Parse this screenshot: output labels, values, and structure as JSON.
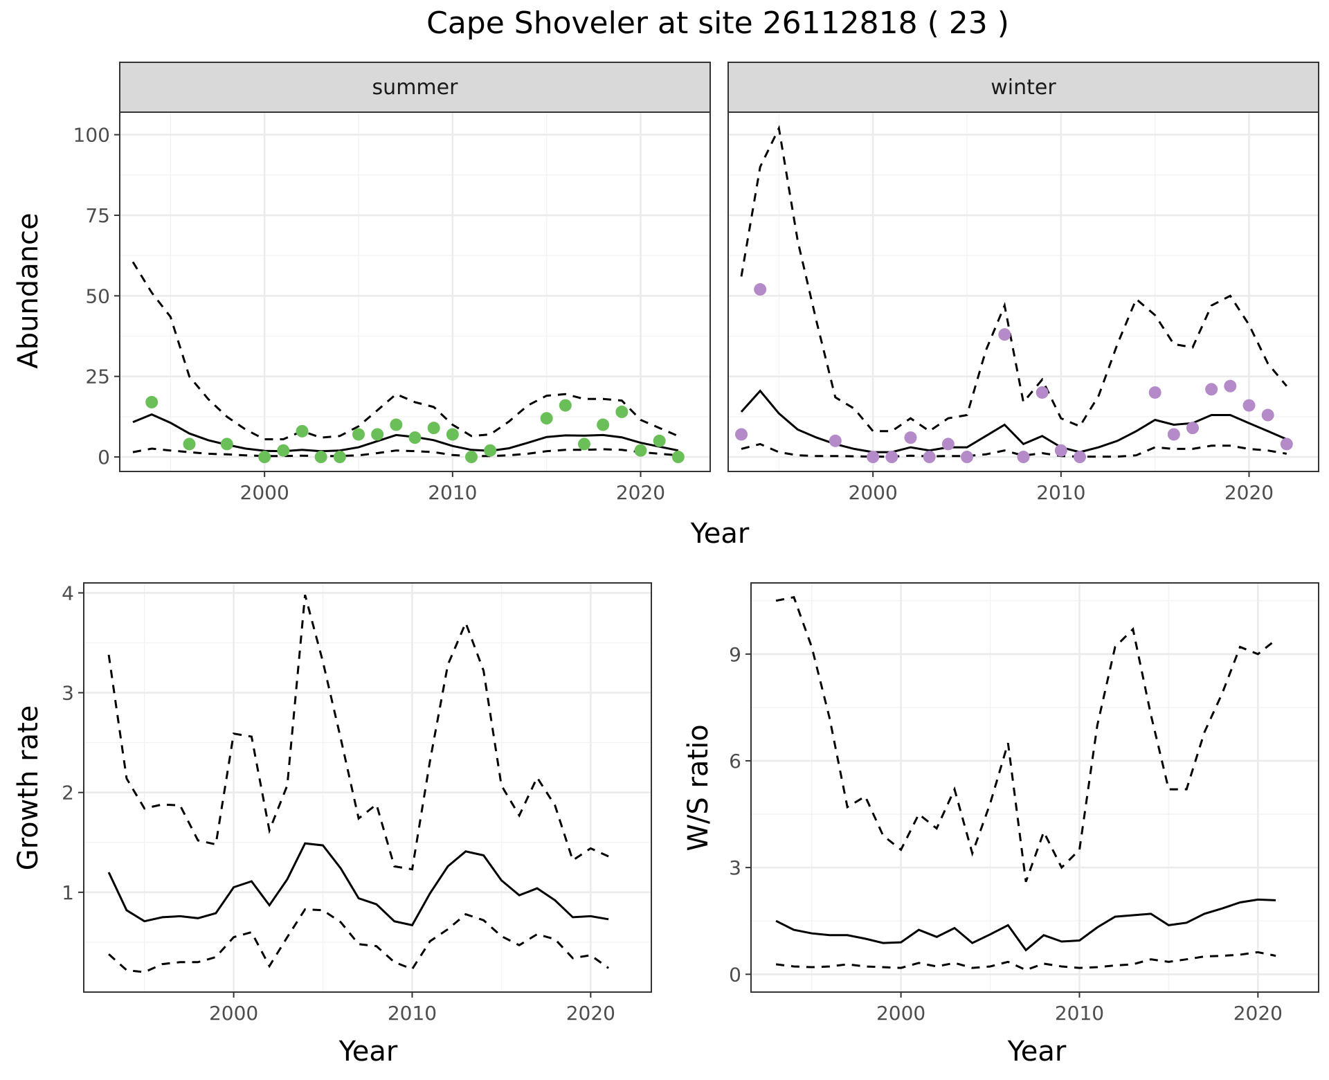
{
  "title": "Cape Shoveler at site 26112818 ( 23 )",
  "chart_data": [
    {
      "type": "line",
      "panel": "summer",
      "strip_label": "summer",
      "xlabel": "Year",
      "ylabel": "Abundance",
      "xlim": [
        1992.3,
        2023.7
      ],
      "ylim": [
        -4.5,
        107
      ],
      "xticks": [
        2000,
        2010,
        2020
      ],
      "yticks": [
        0,
        25,
        50,
        75,
        100
      ],
      "point_color": "#6abf59",
      "mean": {
        "x": [
          1993,
          1994,
          1995,
          1996,
          1997,
          1998,
          1999,
          2000,
          2001,
          2002,
          2003,
          2004,
          2005,
          2006,
          2007,
          2008,
          2009,
          2010,
          2011,
          2012,
          2013,
          2014,
          2015,
          2016,
          2017,
          2018,
          2019,
          2020,
          2021,
          2022
        ],
        "y": [
          10.8,
          13.2,
          10.6,
          7.3,
          5.2,
          3.8,
          2.6,
          1.9,
          1.8,
          2.2,
          1.8,
          2.0,
          3.0,
          4.9,
          6.8,
          6.2,
          5.2,
          3.4,
          2.2,
          1.9,
          2.7,
          4.4,
          6.2,
          6.7,
          6.6,
          6.8,
          6.1,
          4.4,
          3.2,
          2.0
        ]
      },
      "upper": {
        "x": [
          1993,
          1994,
          1995,
          1996,
          1997,
          1998,
          1999,
          2000,
          2001,
          2002,
          2003,
          2004,
          2005,
          2006,
          2007,
          2008,
          2009,
          2010,
          2011,
          2012,
          2013,
          2014,
          2015,
          2016,
          2017,
          2018,
          2019,
          2020,
          2021,
          2022
        ],
        "y": [
          60.5,
          51.0,
          43.5,
          25.0,
          18.0,
          12.5,
          8.5,
          5.5,
          5.5,
          8.0,
          6.0,
          6.5,
          9.5,
          14.5,
          19.5,
          17.0,
          15.5,
          10.0,
          6.5,
          7.0,
          11.0,
          16.0,
          19.0,
          19.5,
          18.0,
          18.0,
          17.5,
          11.5,
          9.0,
          6.5
        ]
      },
      "lower": {
        "x": [
          1993,
          1994,
          1995,
          1996,
          1997,
          1998,
          1999,
          2000,
          2001,
          2002,
          2003,
          2004,
          2005,
          2006,
          2007,
          2008,
          2009,
          2010,
          2011,
          2012,
          2013,
          2014,
          2015,
          2016,
          2017,
          2018,
          2019,
          2020,
          2021,
          2022
        ],
        "y": [
          1.5,
          2.6,
          2.0,
          1.5,
          1.0,
          0.8,
          0.5,
          0.3,
          0.3,
          0.4,
          0.3,
          0.3,
          0.5,
          1.2,
          2.0,
          1.8,
          1.5,
          0.6,
          0.3,
          0.3,
          0.5,
          1.0,
          1.8,
          2.2,
          2.2,
          2.4,
          2.2,
          1.5,
          1.0,
          0.5
        ]
      },
      "observed": {
        "x": [
          1994,
          1996,
          1998,
          2000,
          2001,
          2002,
          2003,
          2004,
          2005,
          2006,
          2007,
          2008,
          2009,
          2010,
          2011,
          2012,
          2015,
          2016,
          2017,
          2018,
          2019,
          2020,
          2021,
          2022
        ],
        "y": [
          17,
          4,
          4,
          0,
          2,
          8,
          0,
          0,
          7,
          7,
          10,
          6,
          9,
          7,
          0,
          2,
          12,
          16,
          4,
          10,
          14,
          2,
          5,
          0
        ]
      }
    },
    {
      "type": "line",
      "panel": "winter",
      "strip_label": "winter",
      "xlabel": "Year",
      "ylabel": "Abundance",
      "xlim": [
        1992.3,
        2023.7
      ],
      "ylim": [
        -4.5,
        107
      ],
      "xticks": [
        2000,
        2010,
        2020
      ],
      "yticks": [
        0,
        25,
        50,
        75,
        100
      ],
      "point_color": "#b48ac8",
      "mean": {
        "x": [
          1993,
          1994,
          1995,
          1996,
          1997,
          1998,
          1999,
          2000,
          2001,
          2002,
          2003,
          2004,
          2005,
          2006,
          2007,
          2008,
          2009,
          2010,
          2011,
          2012,
          2013,
          2014,
          2015,
          2016,
          2017,
          2018,
          2019,
          2020,
          2021,
          2022
        ],
        "y": [
          14,
          20.5,
          13.5,
          8.5,
          6,
          4,
          2.5,
          1.5,
          1.5,
          3,
          2,
          3,
          3,
          6.5,
          10,
          4,
          6.5,
          3,
          1.5,
          3,
          5,
          8,
          11.5,
          10,
          10.5,
          13,
          13,
          10.5,
          8,
          5.5
        ]
      },
      "upper": {
        "x": [
          1993,
          1994,
          1995,
          1996,
          1997,
          1998,
          1999,
          2000,
          2001,
          2002,
          2003,
          2004,
          2005,
          2006,
          2007,
          2008,
          2009,
          2010,
          2011,
          2012,
          2013,
          2014,
          2015,
          2016,
          2017,
          2018,
          2019,
          2020,
          2021,
          2022
        ],
        "y": [
          56,
          90,
          102,
          67,
          42,
          18.5,
          15,
          8,
          8,
          12,
          8,
          12,
          13,
          33,
          47,
          17,
          24,
          12,
          9.5,
          19,
          35,
          49,
          44,
          35,
          34,
          47,
          50,
          41,
          29,
          22
        ]
      },
      "lower": {
        "x": [
          1993,
          1994,
          1995,
          1996,
          1997,
          1998,
          1999,
          2000,
          2001,
          2002,
          2003,
          2004,
          2005,
          2006,
          2007,
          2008,
          2009,
          2010,
          2011,
          2012,
          2013,
          2014,
          2015,
          2016,
          2017,
          2018,
          2019,
          2020,
          2021,
          2022
        ],
        "y": [
          2.5,
          4,
          1.5,
          0.5,
          0.3,
          0.3,
          0.2,
          0.1,
          0.1,
          0.4,
          0.2,
          0.3,
          0.3,
          0.8,
          2,
          0.4,
          1.2,
          0.3,
          0.1,
          0.1,
          0.1,
          0.5,
          3,
          2.5,
          2.5,
          3.5,
          3.5,
          2.5,
          2,
          1
        ]
      },
      "observed": {
        "x": [
          1993,
          1994,
          1998,
          2000,
          2001,
          2002,
          2003,
          2004,
          2005,
          2007,
          2008,
          2009,
          2010,
          2011,
          2015,
          2016,
          2017,
          2018,
          2019,
          2020,
          2021,
          2022
        ],
        "y": [
          7,
          52,
          5,
          0,
          0,
          6,
          0,
          4,
          0,
          38,
          0,
          20,
          2,
          0,
          20,
          7,
          9,
          21,
          22,
          16,
          13,
          4
        ]
      }
    },
    {
      "type": "line",
      "panel": "growth",
      "xlabel": "Year",
      "ylabel": "Growth rate",
      "xlim": [
        1991.6,
        2023.4
      ],
      "ylim": [
        0.0,
        4.1
      ],
      "xticks": [
        2000,
        2010,
        2020
      ],
      "yticks": [
        1,
        2,
        3,
        4
      ],
      "mean": {
        "x": [
          1993,
          1994,
          1995,
          1996,
          1997,
          1998,
          1999,
          2000,
          2001,
          2002,
          2003,
          2004,
          2005,
          2006,
          2007,
          2008,
          2009,
          2010,
          2011,
          2012,
          2013,
          2014,
          2015,
          2016,
          2017,
          2018,
          2019,
          2020,
          2021
        ],
        "y": [
          1.2,
          0.82,
          0.71,
          0.75,
          0.76,
          0.74,
          0.79,
          1.05,
          1.11,
          0.87,
          1.13,
          1.49,
          1.47,
          1.24,
          0.94,
          0.88,
          0.71,
          0.67,
          0.99,
          1.26,
          1.41,
          1.37,
          1.12,
          0.97,
          1.04,
          0.92,
          0.75,
          0.76,
          0.73
        ]
      },
      "upper": {
        "x": [
          1993,
          1994,
          1995,
          1996,
          1997,
          1998,
          1999,
          2000,
          2001,
          2002,
          2003,
          2004,
          2005,
          2006,
          2007,
          2008,
          2009,
          2010,
          2011,
          2012,
          2013,
          2014,
          2015,
          2016,
          2017,
          2018,
          2019,
          2020,
          2021
        ],
        "y": [
          3.38,
          2.14,
          1.84,
          1.88,
          1.87,
          1.52,
          1.48,
          2.59,
          2.56,
          1.62,
          2.07,
          3.98,
          3.31,
          2.54,
          1.74,
          1.88,
          1.26,
          1.23,
          2.32,
          3.28,
          3.7,
          3.22,
          2.07,
          1.77,
          2.15,
          1.87,
          1.32,
          1.44,
          1.36
        ]
      },
      "lower": {
        "x": [
          1993,
          1994,
          1995,
          1996,
          1997,
          1998,
          1999,
          2000,
          2001,
          2002,
          2003,
          2004,
          2005,
          2006,
          2007,
          2008,
          2009,
          2010,
          2011,
          2012,
          2013,
          2014,
          2015,
          2016,
          2017,
          2018,
          2019,
          2020,
          2021
        ],
        "y": [
          0.38,
          0.22,
          0.2,
          0.28,
          0.3,
          0.3,
          0.35,
          0.55,
          0.6,
          0.26,
          0.55,
          0.83,
          0.82,
          0.7,
          0.48,
          0.46,
          0.3,
          0.23,
          0.51,
          0.63,
          0.78,
          0.72,
          0.56,
          0.47,
          0.58,
          0.53,
          0.34,
          0.37,
          0.24
        ]
      }
    },
    {
      "type": "line",
      "panel": "ratio",
      "xlabel": "Year",
      "ylabel": "W/S ratio",
      "xlim": [
        1991.6,
        2023.4
      ],
      "ylim": [
        -0.5,
        11.0
      ],
      "xticks": [
        2000,
        2010,
        2020
      ],
      "yticks": [
        0,
        3,
        6,
        9
      ],
      "mean": {
        "x": [
          1993,
          1994,
          1995,
          1996,
          1997,
          1998,
          1999,
          2000,
          2001,
          2002,
          2003,
          2004,
          2005,
          2006,
          2007,
          2008,
          2009,
          2010,
          2011,
          2012,
          2013,
          2014,
          2015,
          2016,
          2017,
          2018,
          2019,
          2020,
          2021
        ],
        "y": [
          1.5,
          1.25,
          1.15,
          1.1,
          1.1,
          1.0,
          0.88,
          0.9,
          1.25,
          1.05,
          1.3,
          0.88,
          1.12,
          1.38,
          0.68,
          1.1,
          0.92,
          0.95,
          1.32,
          1.62,
          1.66,
          1.7,
          1.38,
          1.45,
          1.7,
          1.85,
          2.02,
          2.1,
          2.08
        ]
      },
      "upper": {
        "x": [
          1993,
          1994,
          1995,
          1996,
          1997,
          1998,
          1999,
          2000,
          2001,
          2002,
          2003,
          2004,
          2005,
          2006,
          2007,
          2008,
          2009,
          2010,
          2011,
          2012,
          2013,
          2014,
          2015,
          2016,
          2017,
          2018,
          2019,
          2020,
          2021
        ],
        "y": [
          10.5,
          10.6,
          9.2,
          7.2,
          4.7,
          5.0,
          3.9,
          3.5,
          4.5,
          4.1,
          5.2,
          3.4,
          4.8,
          6.5,
          2.6,
          4.0,
          3.0,
          3.5,
          7.0,
          9.2,
          9.7,
          7.3,
          5.2,
          5.2,
          6.8,
          7.9,
          9.2,
          9.0,
          9.4
        ]
      },
      "lower": {
        "x": [
          1993,
          1994,
          1995,
          1996,
          1997,
          1998,
          1999,
          2000,
          2001,
          2002,
          2003,
          2004,
          2005,
          2006,
          2007,
          2008,
          2009,
          2010,
          2011,
          2012,
          2013,
          2014,
          2015,
          2016,
          2017,
          2018,
          2019,
          2020,
          2021
        ],
        "y": [
          0.28,
          0.22,
          0.2,
          0.22,
          0.28,
          0.22,
          0.2,
          0.18,
          0.32,
          0.22,
          0.32,
          0.18,
          0.22,
          0.35,
          0.12,
          0.3,
          0.22,
          0.18,
          0.2,
          0.25,
          0.28,
          0.42,
          0.35,
          0.42,
          0.5,
          0.52,
          0.55,
          0.62,
          0.52
        ]
      }
    }
  ]
}
